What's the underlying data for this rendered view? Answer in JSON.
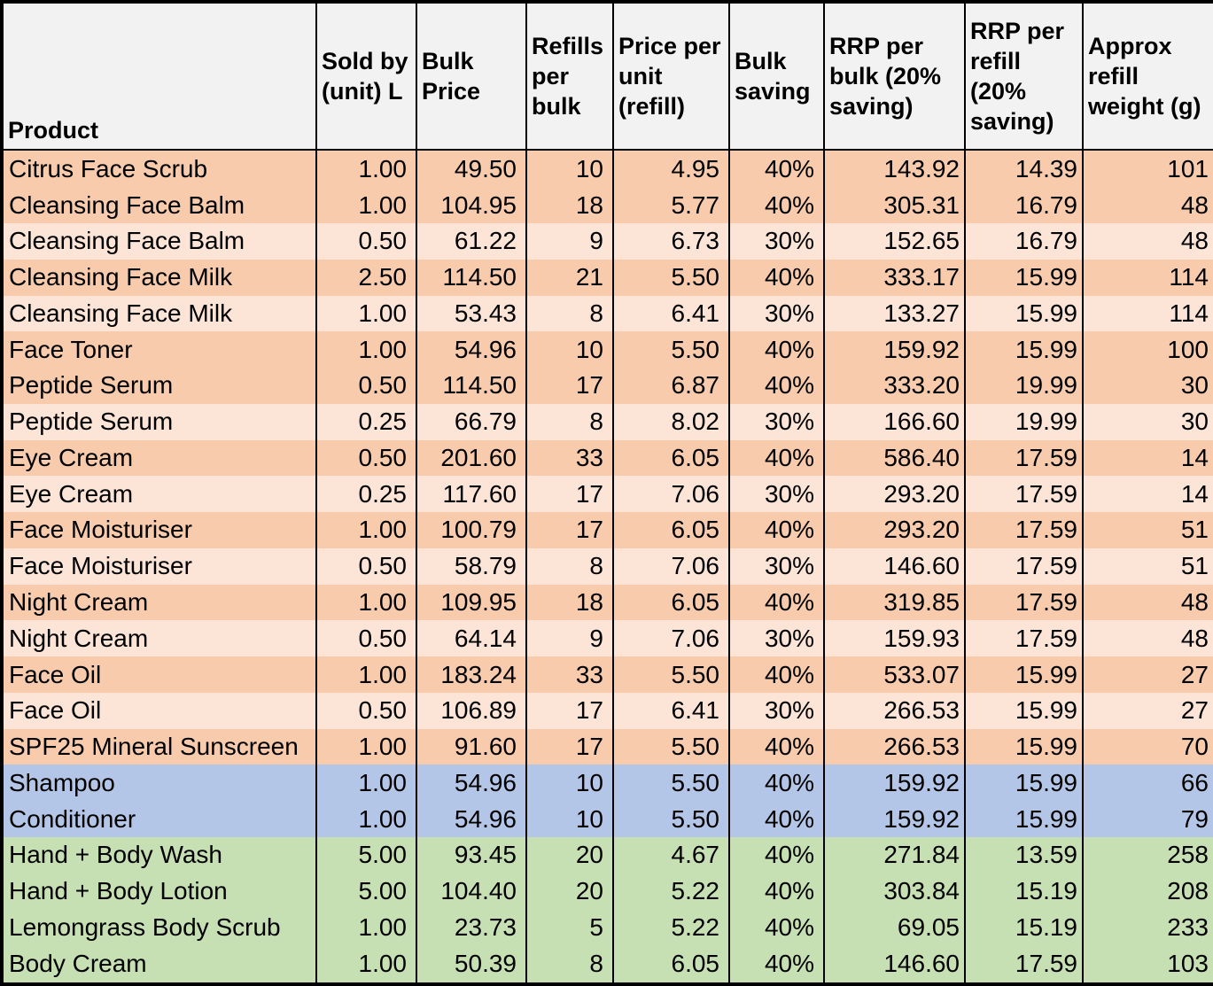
{
  "colors": {
    "header_bg": "#F2F2F2",
    "orange_dark": "#F8CBAD",
    "orange_light": "#FCE4D6",
    "blue": "#B4C6E7",
    "green": "#C6E0B4",
    "border": "#000000",
    "text": "#000000"
  },
  "chart_data": {
    "type": "table",
    "columns": [
      {
        "key": "product",
        "label": "Product",
        "align": "left"
      },
      {
        "key": "sold_by_unit_l",
        "label": "Sold by (unit) L",
        "align": "right"
      },
      {
        "key": "bulk_price",
        "label": "Bulk Price",
        "align": "right"
      },
      {
        "key": "refills_per_bulk",
        "label": "Refills per bulk",
        "align": "right"
      },
      {
        "key": "price_per_unit_refill",
        "label": "Price per unit (refill)",
        "align": "right"
      },
      {
        "key": "bulk_saving",
        "label": "Bulk saving",
        "align": "right"
      },
      {
        "key": "rrp_per_bulk",
        "label": "RRP per bulk (20% saving)",
        "align": "right"
      },
      {
        "key": "rrp_per_refill",
        "label": "RRP per refill (20% saving)",
        "align": "right"
      },
      {
        "key": "approx_refill_weight_g",
        "label": "Approx refill weight (g)",
        "align": "right"
      }
    ],
    "rows": [
      {
        "product": "Citrus Face Scrub",
        "sold_by_unit_l": "1.00",
        "bulk_price": "49.50",
        "refills_per_bulk": "10",
        "price_per_unit_refill": "4.95",
        "bulk_saving": "40%",
        "rrp_per_bulk": "143.92",
        "rrp_per_refill": "14.39",
        "approx_refill_weight_g": "101",
        "shade": "orange_dark"
      },
      {
        "product": "Cleansing Face Balm",
        "sold_by_unit_l": "1.00",
        "bulk_price": "104.95",
        "refills_per_bulk": "18",
        "price_per_unit_refill": "5.77",
        "bulk_saving": "40%",
        "rrp_per_bulk": "305.31",
        "rrp_per_refill": "16.79",
        "approx_refill_weight_g": "48",
        "shade": "orange_dark"
      },
      {
        "product": "Cleansing Face Balm",
        "sold_by_unit_l": "0.50",
        "bulk_price": "61.22",
        "refills_per_bulk": "9",
        "price_per_unit_refill": "6.73",
        "bulk_saving": "30%",
        "rrp_per_bulk": "152.65",
        "rrp_per_refill": "16.79",
        "approx_refill_weight_g": "48",
        "shade": "orange_light"
      },
      {
        "product": "Cleansing Face Milk",
        "sold_by_unit_l": "2.50",
        "bulk_price": "114.50",
        "refills_per_bulk": "21",
        "price_per_unit_refill": "5.50",
        "bulk_saving": "40%",
        "rrp_per_bulk": "333.17",
        "rrp_per_refill": "15.99",
        "approx_refill_weight_g": "114",
        "shade": "orange_dark"
      },
      {
        "product": "Cleansing Face Milk",
        "sold_by_unit_l": "1.00",
        "bulk_price": "53.43",
        "refills_per_bulk": "8",
        "price_per_unit_refill": "6.41",
        "bulk_saving": "30%",
        "rrp_per_bulk": "133.27",
        "rrp_per_refill": "15.99",
        "approx_refill_weight_g": "114",
        "shade": "orange_light"
      },
      {
        "product": "Face Toner",
        "sold_by_unit_l": "1.00",
        "bulk_price": "54.96",
        "refills_per_bulk": "10",
        "price_per_unit_refill": "5.50",
        "bulk_saving": "40%",
        "rrp_per_bulk": "159.92",
        "rrp_per_refill": "15.99",
        "approx_refill_weight_g": "100",
        "shade": "orange_dark"
      },
      {
        "product": "Peptide Serum",
        "sold_by_unit_l": "0.50",
        "bulk_price": "114.50",
        "refills_per_bulk": "17",
        "price_per_unit_refill": "6.87",
        "bulk_saving": "40%",
        "rrp_per_bulk": "333.20",
        "rrp_per_refill": "19.99",
        "approx_refill_weight_g": "30",
        "shade": "orange_dark"
      },
      {
        "product": "Peptide Serum",
        "sold_by_unit_l": "0.25",
        "bulk_price": "66.79",
        "refills_per_bulk": "8",
        "price_per_unit_refill": "8.02",
        "bulk_saving": "30%",
        "rrp_per_bulk": "166.60",
        "rrp_per_refill": "19.99",
        "approx_refill_weight_g": "30",
        "shade": "orange_light"
      },
      {
        "product": "Eye Cream",
        "sold_by_unit_l": "0.50",
        "bulk_price": "201.60",
        "refills_per_bulk": "33",
        "price_per_unit_refill": "6.05",
        "bulk_saving": "40%",
        "rrp_per_bulk": "586.40",
        "rrp_per_refill": "17.59",
        "approx_refill_weight_g": "14",
        "shade": "orange_dark"
      },
      {
        "product": "Eye Cream",
        "sold_by_unit_l": "0.25",
        "bulk_price": "117.60",
        "refills_per_bulk": "17",
        "price_per_unit_refill": "7.06",
        "bulk_saving": "30%",
        "rrp_per_bulk": "293.20",
        "rrp_per_refill": "17.59",
        "approx_refill_weight_g": "14",
        "shade": "orange_light"
      },
      {
        "product": "Face Moisturiser",
        "sold_by_unit_l": "1.00",
        "bulk_price": "100.79",
        "refills_per_bulk": "17",
        "price_per_unit_refill": "6.05",
        "bulk_saving": "40%",
        "rrp_per_bulk": "293.20",
        "rrp_per_refill": "17.59",
        "approx_refill_weight_g": "51",
        "shade": "orange_dark"
      },
      {
        "product": "Face Moisturiser",
        "sold_by_unit_l": "0.50",
        "bulk_price": "58.79",
        "refills_per_bulk": "8",
        "price_per_unit_refill": "7.06",
        "bulk_saving": "30%",
        "rrp_per_bulk": "146.60",
        "rrp_per_refill": "17.59",
        "approx_refill_weight_g": "51",
        "shade": "orange_light"
      },
      {
        "product": "Night Cream",
        "sold_by_unit_l": "1.00",
        "bulk_price": "109.95",
        "refills_per_bulk": "18",
        "price_per_unit_refill": "6.05",
        "bulk_saving": "40%",
        "rrp_per_bulk": "319.85",
        "rrp_per_refill": "17.59",
        "approx_refill_weight_g": "48",
        "shade": "orange_dark"
      },
      {
        "product": "Night Cream",
        "sold_by_unit_l": "0.50",
        "bulk_price": "64.14",
        "refills_per_bulk": "9",
        "price_per_unit_refill": "7.06",
        "bulk_saving": "30%",
        "rrp_per_bulk": "159.93",
        "rrp_per_refill": "17.59",
        "approx_refill_weight_g": "48",
        "shade": "orange_light"
      },
      {
        "product": "Face Oil",
        "sold_by_unit_l": "1.00",
        "bulk_price": "183.24",
        "refills_per_bulk": "33",
        "price_per_unit_refill": "5.50",
        "bulk_saving": "40%",
        "rrp_per_bulk": "533.07",
        "rrp_per_refill": "15.99",
        "approx_refill_weight_g": "27",
        "shade": "orange_dark"
      },
      {
        "product": "Face Oil",
        "sold_by_unit_l": "0.50",
        "bulk_price": "106.89",
        "refills_per_bulk": "17",
        "price_per_unit_refill": "6.41",
        "bulk_saving": "30%",
        "rrp_per_bulk": "266.53",
        "rrp_per_refill": "15.99",
        "approx_refill_weight_g": "27",
        "shade": "orange_light"
      },
      {
        "product": "SPF25 Mineral Sunscreen",
        "sold_by_unit_l": "1.00",
        "bulk_price": "91.60",
        "refills_per_bulk": "17",
        "price_per_unit_refill": "5.50",
        "bulk_saving": "40%",
        "rrp_per_bulk": "266.53",
        "rrp_per_refill": "15.99",
        "approx_refill_weight_g": "70",
        "shade": "orange_dark"
      },
      {
        "product": "Shampoo",
        "sold_by_unit_l": "1.00",
        "bulk_price": "54.96",
        "refills_per_bulk": "10",
        "price_per_unit_refill": "5.50",
        "bulk_saving": "40%",
        "rrp_per_bulk": "159.92",
        "rrp_per_refill": "15.99",
        "approx_refill_weight_g": "66",
        "shade": "blue"
      },
      {
        "product": "Conditioner",
        "sold_by_unit_l": "1.00",
        "bulk_price": "54.96",
        "refills_per_bulk": "10",
        "price_per_unit_refill": "5.50",
        "bulk_saving": "40%",
        "rrp_per_bulk": "159.92",
        "rrp_per_refill": "15.99",
        "approx_refill_weight_g": "79",
        "shade": "blue"
      },
      {
        "product": "Hand + Body Wash",
        "sold_by_unit_l": "5.00",
        "bulk_price": "93.45",
        "refills_per_bulk": "20",
        "price_per_unit_refill": "4.67",
        "bulk_saving": "40%",
        "rrp_per_bulk": "271.84",
        "rrp_per_refill": "13.59",
        "approx_refill_weight_g": "258",
        "shade": "green"
      },
      {
        "product": "Hand + Body Lotion",
        "sold_by_unit_l": "5.00",
        "bulk_price": "104.40",
        "refills_per_bulk": "20",
        "price_per_unit_refill": "5.22",
        "bulk_saving": "40%",
        "rrp_per_bulk": "303.84",
        "rrp_per_refill": "15.19",
        "approx_refill_weight_g": "208",
        "shade": "green"
      },
      {
        "product": "Lemongrass Body Scrub",
        "sold_by_unit_l": "1.00",
        "bulk_price": "23.73",
        "refills_per_bulk": "5",
        "price_per_unit_refill": "5.22",
        "bulk_saving": "40%",
        "rrp_per_bulk": "69.05",
        "rrp_per_refill": "15.19",
        "approx_refill_weight_g": "233",
        "shade": "green"
      },
      {
        "product": "Body Cream",
        "sold_by_unit_l": "1.00",
        "bulk_price": "50.39",
        "refills_per_bulk": "8",
        "price_per_unit_refill": "6.05",
        "bulk_saving": "40%",
        "rrp_per_bulk": "146.60",
        "rrp_per_refill": "17.59",
        "approx_refill_weight_g": "103",
        "shade": "green"
      }
    ]
  }
}
